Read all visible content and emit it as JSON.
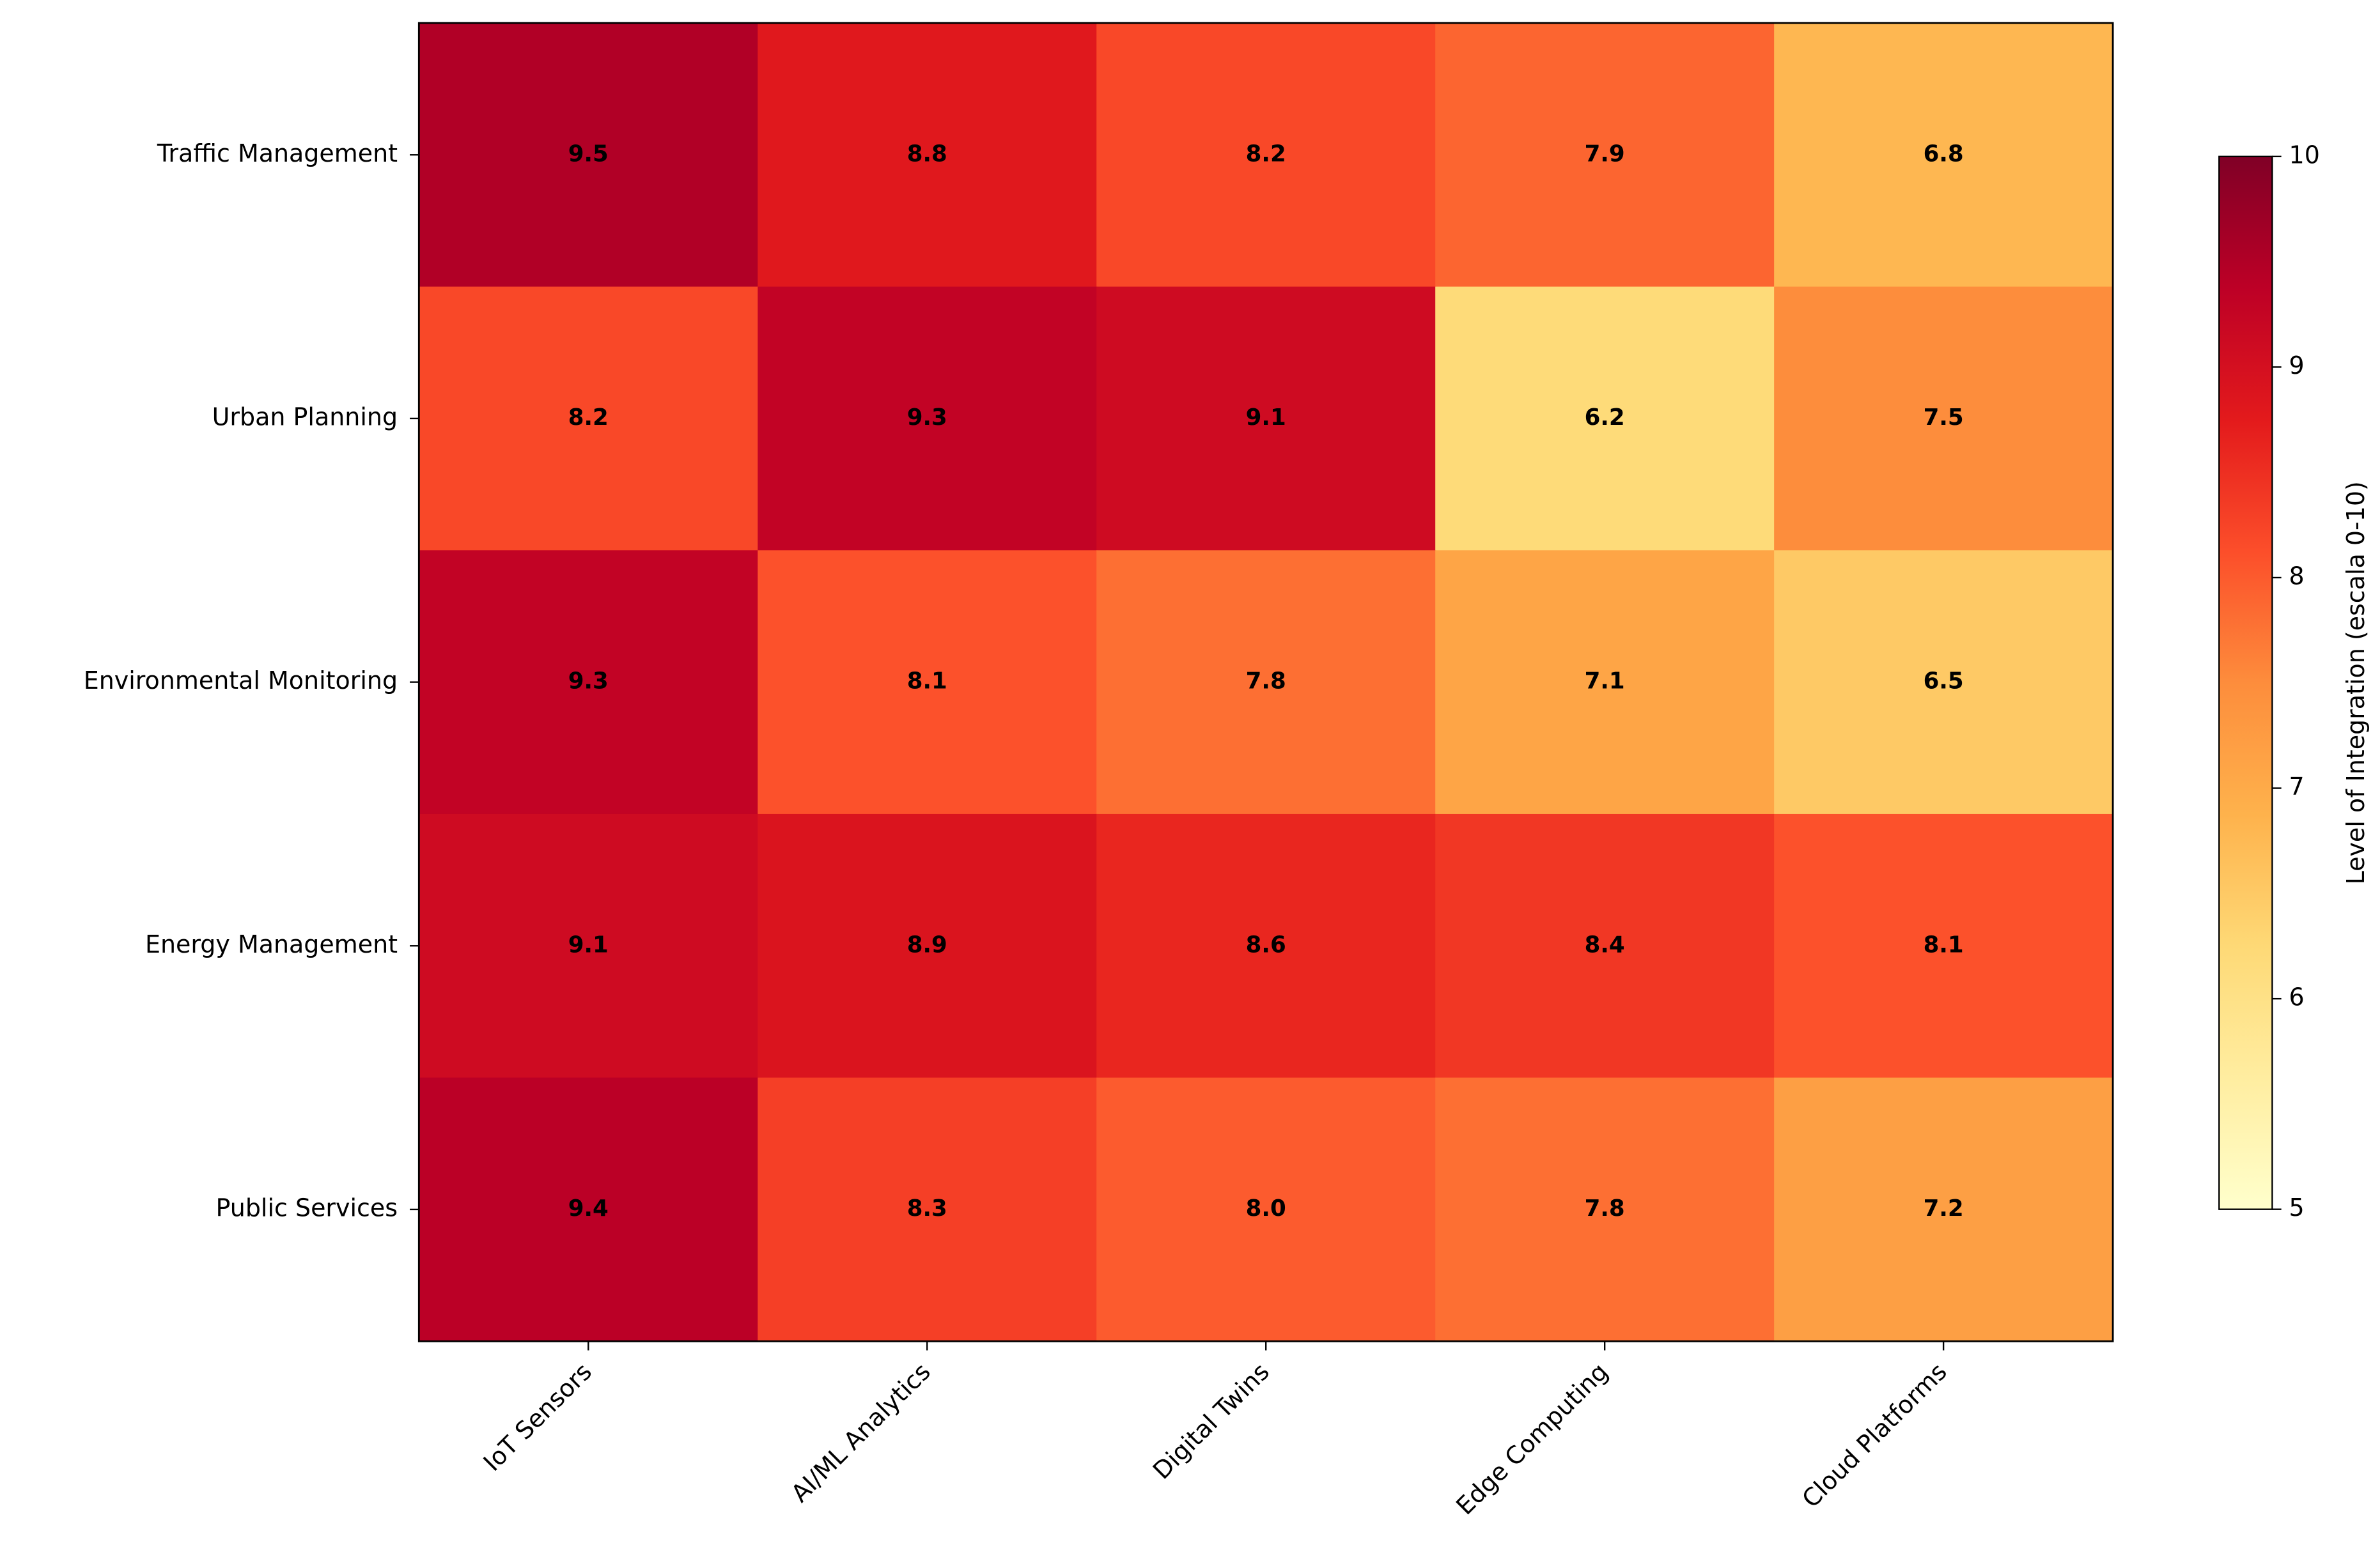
{
  "chart_data": {
    "type": "heatmap",
    "rows": [
      "Traffic Management",
      "Urban Planning",
      "Environmental Monitoring",
      "Energy Management",
      "Public Services"
    ],
    "columns": [
      "IoT Sensors",
      "AI/ML Analytics",
      "Digital Twins",
      "Edge Computing",
      "Cloud Platforms"
    ],
    "values": [
      [
        9.5,
        8.8,
        8.2,
        7.9,
        6.8
      ],
      [
        8.2,
        9.3,
        9.1,
        6.2,
        7.5
      ],
      [
        9.3,
        8.1,
        7.8,
        7.1,
        6.5
      ],
      [
        9.1,
        8.9,
        8.6,
        8.4,
        8.1
      ],
      [
        9.4,
        8.3,
        8.0,
        7.8,
        7.2
      ]
    ],
    "value_labels": [
      [
        "9.5",
        "8.8",
        "8.2",
        "7.9",
        "6.8"
      ],
      [
        "8.2",
        "9.3",
        "9.1",
        "6.2",
        "7.5"
      ],
      [
        "9.3",
        "8.1",
        "7.8",
        "7.1",
        "6.5"
      ],
      [
        "9.1",
        "8.9",
        "8.6",
        "8.4",
        "8.1"
      ],
      [
        "9.4",
        "8.3",
        "8.0",
        "7.8",
        "7.2"
      ]
    ],
    "colormap": "YlOrRd",
    "clim": [
      5,
      10
    ],
    "cticks": [
      5,
      6,
      7,
      8,
      9,
      10
    ],
    "colorbar_label": "Level of Integration (escala 0-10)"
  }
}
